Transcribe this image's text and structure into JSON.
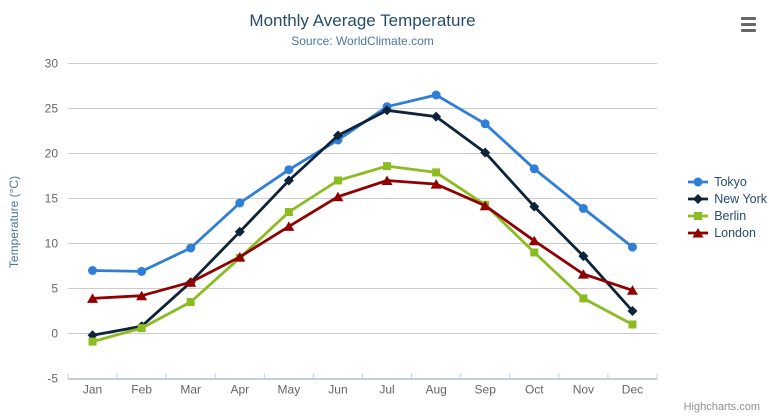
{
  "chart": {
    "credits": "Highcharts.com",
    "icons": {
      "menu": "hamburger-menu-icon"
    },
    "colors": {
      "background": "#ffffff",
      "title": "#274b6d",
      "subtitle": "#4d759e",
      "axis_title": "#4d759e",
      "axis_label": "#666666",
      "grid": "#cccccc",
      "axis_line": "#c0d0e0",
      "legend_text": "#274b6d",
      "credits": "#909090",
      "menu_icon": "#666666"
    }
  },
  "chart_data": {
    "type": "line",
    "title": "Monthly Average Temperature",
    "subtitle": "Source: WorldClimate.com",
    "xlabel": "",
    "ylabel": "Temperature (°C)",
    "categories": [
      "Jan",
      "Feb",
      "Mar",
      "Apr",
      "May",
      "Jun",
      "Jul",
      "Aug",
      "Sep",
      "Oct",
      "Nov",
      "Dec"
    ],
    "ylim": [
      -5,
      30
    ],
    "ytick_step": 5,
    "ytick_labels": [
      "-5",
      "0",
      "5",
      "10",
      "15",
      "20",
      "25",
      "30"
    ],
    "grid": true,
    "legend_position": "right",
    "series": [
      {
        "name": "Tokyo",
        "color": "#2f7ed8",
        "marker": "circle",
        "values": [
          7.0,
          6.9,
          9.5,
          14.5,
          18.2,
          21.5,
          25.2,
          26.5,
          23.3,
          18.3,
          13.9,
          9.6
        ]
      },
      {
        "name": "New York",
        "color": "#0d233a",
        "marker": "diamond",
        "values": [
          -0.2,
          0.8,
          5.7,
          11.3,
          17.0,
          22.0,
          24.8,
          24.1,
          20.1,
          14.1,
          8.6,
          2.5
        ]
      },
      {
        "name": "Berlin",
        "color": "#8bbc21",
        "marker": "square",
        "values": [
          -0.9,
          0.6,
          3.5,
          8.4,
          13.5,
          17.0,
          18.6,
          17.9,
          14.3,
          9.0,
          3.9,
          1.0
        ]
      },
      {
        "name": "London",
        "color": "#910000",
        "marker": "triangle",
        "values": [
          3.9,
          4.2,
          5.7,
          8.5,
          11.9,
          15.2,
          17.0,
          16.6,
          14.2,
          10.3,
          6.6,
          4.8
        ]
      }
    ]
  }
}
